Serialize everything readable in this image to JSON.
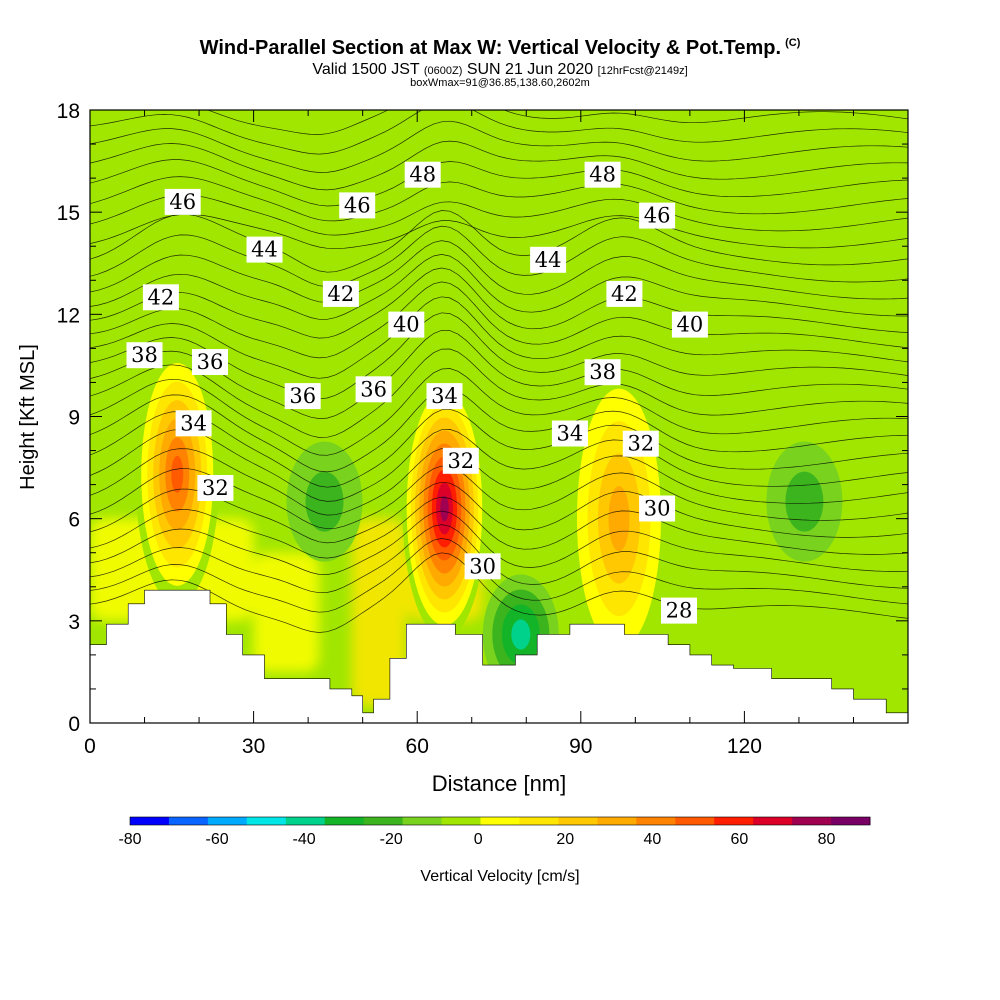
{
  "header": {
    "title": "Wind-Parallel Section at Max W: Vertical Velocity & Pot.Temp.",
    "copyright": "(C)",
    "valid_prefix": "Valid 1500 JST",
    "valid_utc": "(0600Z)",
    "valid_date": "SUN 21 Jun 2020",
    "forecast_info": "[12hrFcst@2149z]",
    "box_info": "boxWmax=91@36.85,138.60,2602m"
  },
  "chart_data": {
    "type": "heatmap",
    "xlabel": "Distance [nm]",
    "ylabel": "Height [Kft MSL]",
    "xlim": [
      0,
      150
    ],
    "ylim": [
      0,
      18
    ],
    "x_ticks": [
      0,
      30,
      60,
      90,
      120
    ],
    "y_ticks": [
      0,
      3,
      6,
      9,
      12,
      15,
      18
    ],
    "colorbar": {
      "label": "Vertical Velocity [cm/s]",
      "min": -80,
      "max": 90,
      "step": 10,
      "tick_labels": [
        -80,
        -60,
        -40,
        -20,
        0,
        20,
        40,
        60,
        80
      ],
      "colors": [
        "#0000ff",
        "#0a64ff",
        "#00aaff",
        "#00e6e6",
        "#00d28c",
        "#14b428",
        "#3cb41e",
        "#78d21e",
        "#a0e600",
        "#ffff00",
        "#ffe600",
        "#ffc800",
        "#ffaa00",
        "#ff8200",
        "#ff5a00",
        "#ff1e00",
        "#dc0028",
        "#a00050",
        "#780064"
      ]
    },
    "terrain_kft": [
      [
        0,
        2.3
      ],
      [
        3,
        2.3
      ],
      [
        3,
        2.9
      ],
      [
        7,
        2.9
      ],
      [
        7,
        3.5
      ],
      [
        10,
        3.5
      ],
      [
        10,
        3.9
      ],
      [
        22,
        3.9
      ],
      [
        22,
        3.5
      ],
      [
        25,
        3.5
      ],
      [
        25,
        2.6
      ],
      [
        28,
        2.6
      ],
      [
        28,
        2.0
      ],
      [
        32,
        2.0
      ],
      [
        32,
        1.3
      ],
      [
        44,
        1.3
      ],
      [
        44,
        1.0
      ],
      [
        48,
        1.0
      ],
      [
        48,
        0.8
      ],
      [
        50,
        0.8
      ],
      [
        50,
        0.3
      ],
      [
        52,
        0.3
      ],
      [
        52,
        0.7
      ],
      [
        55,
        0.7
      ],
      [
        55,
        1.9
      ],
      [
        58,
        1.9
      ],
      [
        58,
        2.9
      ],
      [
        67,
        2.9
      ],
      [
        67,
        2.6
      ],
      [
        72,
        2.6
      ],
      [
        72,
        1.7
      ],
      [
        78,
        1.7
      ],
      [
        78,
        2.0
      ],
      [
        82,
        2.0
      ],
      [
        82,
        2.6
      ],
      [
        88,
        2.6
      ],
      [
        88,
        2.9
      ],
      [
        98,
        2.9
      ],
      [
        98,
        2.6
      ],
      [
        106,
        2.6
      ],
      [
        106,
        2.3
      ],
      [
        110,
        2.3
      ],
      [
        110,
        2.0
      ],
      [
        114,
        2.0
      ],
      [
        114,
        1.7
      ],
      [
        118,
        1.7
      ],
      [
        118,
        1.6
      ],
      [
        125,
        1.6
      ],
      [
        125,
        1.3
      ],
      [
        136,
        1.3
      ],
      [
        136,
        1.0
      ],
      [
        140,
        1.0
      ],
      [
        140,
        0.7
      ],
      [
        146,
        0.7
      ],
      [
        146,
        0.3
      ],
      [
        150,
        0.3
      ]
    ],
    "updraft_cores": [
      {
        "name": "core-1",
        "x": 16,
        "height_kft": 7.3,
        "w_cm_s": 65
      },
      {
        "name": "core-2",
        "x": 65,
        "height_kft": 6.3,
        "w_cm_s": 91
      },
      {
        "name": "core-3",
        "x": 97,
        "height_kft": 6.0,
        "w_cm_s": 40
      }
    ],
    "downdraft_cores": [
      {
        "name": "down-1",
        "x": 79,
        "height_kft": 2.6,
        "w_cm_s": -35
      },
      {
        "name": "down-2",
        "x": 43,
        "height_kft": 6.5,
        "w_cm_s": -15
      },
      {
        "name": "down-3",
        "x": 131,
        "height_kft": 6.5,
        "w_cm_s": -12
      }
    ],
    "isentrope_labels": [
      {
        "text": "46",
        "x": 17,
        "y": 15.3
      },
      {
        "text": "44",
        "x": 32,
        "y": 13.9
      },
      {
        "text": "42",
        "x": 13,
        "y": 12.5
      },
      {
        "text": "38",
        "x": 10,
        "y": 10.8
      },
      {
        "text": "36",
        "x": 22,
        "y": 10.6
      },
      {
        "text": "34",
        "x": 19,
        "y": 8.8
      },
      {
        "text": "32",
        "x": 23,
        "y": 6.9
      },
      {
        "text": "48",
        "x": 61,
        "y": 16.1
      },
      {
        "text": "46",
        "x": 49,
        "y": 15.2
      },
      {
        "text": "42",
        "x": 46,
        "y": 12.6
      },
      {
        "text": "40",
        "x": 58,
        "y": 11.7
      },
      {
        "text": "36",
        "x": 39,
        "y": 9.6
      },
      {
        "text": "36",
        "x": 52,
        "y": 9.8
      },
      {
        "text": "34",
        "x": 65,
        "y": 9.6
      },
      {
        "text": "32",
        "x": 68,
        "y": 7.7
      },
      {
        "text": "30",
        "x": 72,
        "y": 4.6
      },
      {
        "text": "48",
        "x": 94,
        "y": 16.1
      },
      {
        "text": "46",
        "x": 104,
        "y": 14.9
      },
      {
        "text": "44",
        "x": 84,
        "y": 13.6
      },
      {
        "text": "42",
        "x": 98,
        "y": 12.6
      },
      {
        "text": "40",
        "x": 110,
        "y": 11.7
      },
      {
        "text": "38",
        "x": 94,
        "y": 10.3
      },
      {
        "text": "34",
        "x": 88,
        "y": 8.5
      },
      {
        "text": "32",
        "x": 101,
        "y": 8.2
      },
      {
        "text": "30",
        "x": 104,
        "y": 6.3
      },
      {
        "text": "28",
        "x": 108,
        "y": 3.3
      }
    ]
  }
}
